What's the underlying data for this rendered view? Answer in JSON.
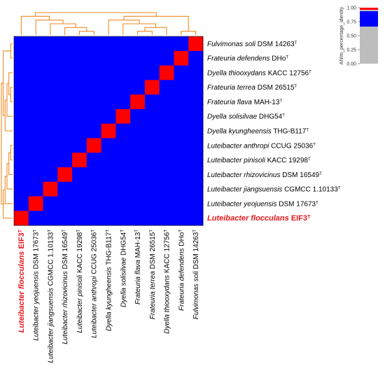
{
  "chart_data": {
    "type": "heatmap",
    "legend_title": "ANIm_percentage_identity",
    "legend_ticks": [
      "1.00",
      "0.75",
      "0.50",
      "0.25",
      "0.00"
    ],
    "colors": {
      "high": "#ff0000",
      "low": "#0000ff",
      "dendrogram": "#f08a24",
      "highlight_label": "#e8171c",
      "legend_gray": "#bdbdbd"
    },
    "strains": [
      {
        "genus": "Luteibacter",
        "species": "flocculans",
        "strain": "EIF3",
        "sup": "T",
        "highlight": true
      },
      {
        "genus": "Luteibacter",
        "species": "yeojuensis",
        "strain": "DSM 17673",
        "sup": "T"
      },
      {
        "genus": "Luteibacter",
        "species": "jiangsuensis",
        "strain": "CGMCC 1.10133",
        "sup": "T"
      },
      {
        "genus": "Luteibacter",
        "species": "rhizovicinus",
        "strain": "DSM 16549",
        "sup": "T"
      },
      {
        "genus": "Luteibacter",
        "species": "pinisoli",
        "strain": "KACC 19298",
        "sup": "T"
      },
      {
        "genus": "Luteibacter",
        "species": "anthropi",
        "strain": "CCUG 25036",
        "sup": "T"
      },
      {
        "genus": "Dyella",
        "species": "kyungheensis",
        "strain": "THG-B117",
        "sup": "T"
      },
      {
        "genus": "Dyella",
        "species": "solisilvae",
        "strain": "DHG54",
        "sup": "T"
      },
      {
        "genus": "Frateuria",
        "species": "flava",
        "strain": "MAH-13",
        "sup": "T"
      },
      {
        "genus": "Frateuria",
        "species": "terrea",
        "strain": "DSM 26515",
        "sup": "T"
      },
      {
        "genus": "Dyella",
        "species": "thiooxydans",
        "strain": "KACC 12756",
        "sup": "T"
      },
      {
        "genus": "Frateuria",
        "species": "defendens",
        "strain": "DHo",
        "sup": "T"
      },
      {
        "genus": "Fulvimonas",
        "species": "soli",
        "strain": "DSM 14263",
        "sup": "T"
      }
    ],
    "diagonal_value": 1.0,
    "off_diagonal_value": 0.85
  }
}
